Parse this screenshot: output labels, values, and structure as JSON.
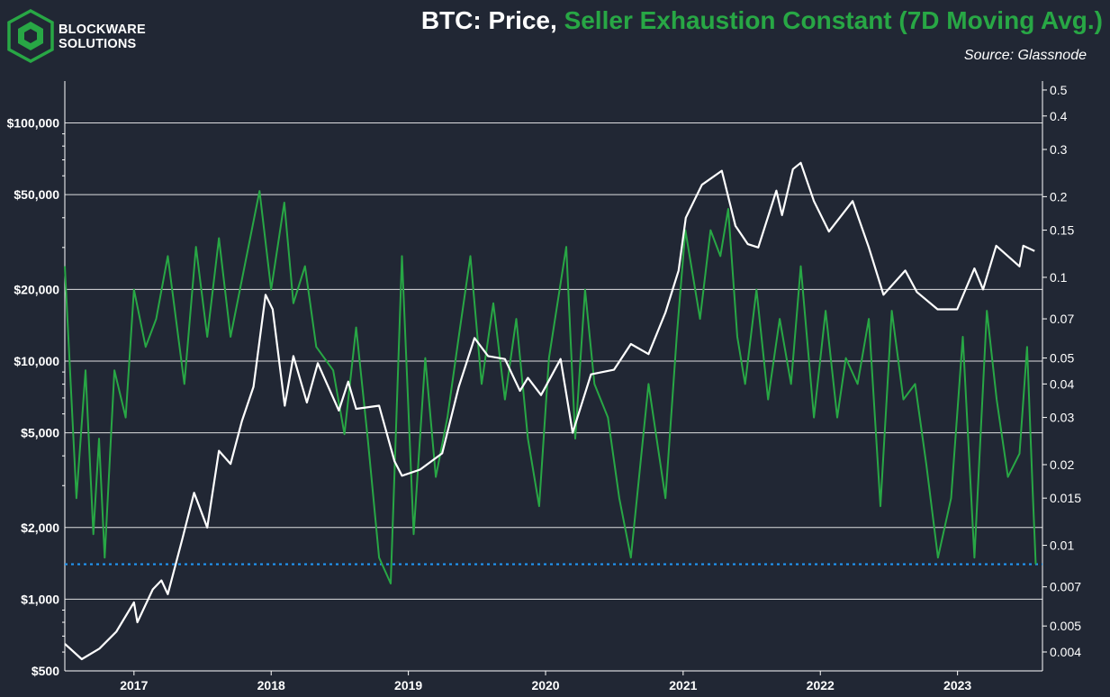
{
  "brand": {
    "line1": "BLOCKWARE",
    "line2": "SOLUTIONS"
  },
  "header": {
    "title_prefix": "BTC: Price, ",
    "title_series": "Seller Exhaustion Constant (7D Moving Avg.)",
    "source": "Source: Glassnode"
  },
  "colors": {
    "background": "#212734",
    "price": "#ffffff",
    "sec": "#28a745",
    "threshold": "#2196f3",
    "grid": "#ffffff"
  },
  "chart_data": {
    "type": "line",
    "x_ticks": [
      "2017",
      "2018",
      "2019",
      "2020",
      "2021",
      "2022",
      "2023"
    ],
    "xlim": [
      "2016-07-01",
      "2023-08-15"
    ],
    "y_left": {
      "scale": "log",
      "range": [
        500,
        150000
      ],
      "ticks": [
        {
          "v": 500,
          "label": "$500"
        },
        {
          "v": 1000,
          "label": "$1,000"
        },
        {
          "v": 2000,
          "label": "$2,000"
        },
        {
          "v": 5000,
          "label": "$5,000"
        },
        {
          "v": 10000,
          "label": "$10,000"
        },
        {
          "v": 20000,
          "label": "$20,000"
        },
        {
          "v": 50000,
          "label": "$50,000"
        },
        {
          "v": 100000,
          "label": "$100,000"
        }
      ]
    },
    "y_right": {
      "scale": "log",
      "range": [
        0.0034,
        0.54
      ],
      "ticks": [
        {
          "v": 0.5,
          "label": "0.5"
        },
        {
          "v": 0.4,
          "label": "0.4"
        },
        {
          "v": 0.3,
          "label": "0.3"
        },
        {
          "v": 0.2,
          "label": "0.2"
        },
        {
          "v": 0.15,
          "label": "0.15"
        },
        {
          "v": 0.1,
          "label": "0.1"
        },
        {
          "v": 0.07,
          "label": "0.07"
        },
        {
          "v": 0.05,
          "label": "0.05"
        },
        {
          "v": 0.04,
          "label": "0.04"
        },
        {
          "v": 0.03,
          "label": "0.03"
        },
        {
          "v": 0.02,
          "label": "0.02"
        },
        {
          "v": 0.015,
          "label": "0.015"
        },
        {
          "v": 0.01,
          "label": "0.01"
        },
        {
          "v": 0.007,
          "label": "0.007"
        },
        {
          "v": 0.005,
          "label": "0.005"
        },
        {
          "v": 0.004,
          "label": "0.004"
        }
      ]
    },
    "threshold": 0.0085,
    "series": [
      {
        "axis": "left",
        "points": [
          [
            "2016-07-01",
            650
          ],
          [
            "2016-08-15",
            560
          ],
          [
            "2016-10-01",
            620
          ],
          [
            "2016-11-15",
            730
          ],
          [
            "2017-01-01",
            970
          ],
          [
            "2017-01-10",
            800
          ],
          [
            "2017-02-20",
            1100
          ],
          [
            "2017-03-15",
            1200
          ],
          [
            "2017-04-01",
            1050
          ],
          [
            "2017-05-10",
            1800
          ],
          [
            "2017-06-10",
            2800
          ],
          [
            "2017-07-15",
            2000
          ],
          [
            "2017-08-15",
            4200
          ],
          [
            "2017-09-15",
            3700
          ],
          [
            "2017-10-15",
            5600
          ],
          [
            "2017-11-15",
            7800
          ],
          [
            "2017-12-17",
            19000
          ],
          [
            "2018-01-05",
            16500
          ],
          [
            "2018-02-06",
            6500
          ],
          [
            "2018-03-01",
            10500
          ],
          [
            "2018-04-06",
            6700
          ],
          [
            "2018-05-05",
            9800
          ],
          [
            "2018-06-30",
            6200
          ],
          [
            "2018-07-25",
            8200
          ],
          [
            "2018-08-15",
            6300
          ],
          [
            "2018-10-15",
            6500
          ],
          [
            "2018-11-25",
            3800
          ],
          [
            "2018-12-15",
            3300
          ],
          [
            "2019-02-01",
            3500
          ],
          [
            "2019-04-01",
            4100
          ],
          [
            "2019-05-15",
            7800
          ],
          [
            "2019-06-26",
            12500
          ],
          [
            "2019-08-01",
            10500
          ],
          [
            "2019-09-15",
            10200
          ],
          [
            "2019-10-25",
            7500
          ],
          [
            "2019-11-15",
            8500
          ],
          [
            "2019-12-20",
            7200
          ],
          [
            "2020-02-10",
            10200
          ],
          [
            "2020-03-13",
            5000
          ],
          [
            "2020-05-01",
            8800
          ],
          [
            "2020-07-01",
            9200
          ],
          [
            "2020-08-15",
            11800
          ],
          [
            "2020-10-01",
            10700
          ],
          [
            "2020-11-15",
            16000
          ],
          [
            "2020-12-20",
            24000
          ],
          [
            "2021-01-08",
            40000
          ],
          [
            "2021-02-20",
            55000
          ],
          [
            "2021-04-14",
            63000
          ],
          [
            "2021-05-20",
            37000
          ],
          [
            "2021-06-22",
            31000
          ],
          [
            "2021-07-20",
            30000
          ],
          [
            "2021-09-06",
            52000
          ],
          [
            "2021-09-21",
            41000
          ],
          [
            "2021-10-20",
            64000
          ],
          [
            "2021-11-10",
            68000
          ],
          [
            "2021-12-15",
            47000
          ],
          [
            "2022-01-24",
            35000
          ],
          [
            "2022-03-28",
            47000
          ],
          [
            "2022-05-10",
            30000
          ],
          [
            "2022-06-18",
            19000
          ],
          [
            "2022-08-15",
            24000
          ],
          [
            "2022-09-15",
            19500
          ],
          [
            "2022-11-09",
            16500
          ],
          [
            "2022-12-31",
            16500
          ],
          [
            "2023-02-15",
            24500
          ],
          [
            "2023-03-10",
            20000
          ],
          [
            "2023-04-14",
            30500
          ],
          [
            "2023-06-15",
            25000
          ],
          [
            "2023-06-25",
            30500
          ],
          [
            "2023-07-25",
            29000
          ]
        ]
      },
      {
        "axis": "right",
        "points": [
          [
            "2016-07-01",
            0.11
          ],
          [
            "2016-08-01",
            0.015
          ],
          [
            "2016-08-25",
            0.045
          ],
          [
            "2016-09-15",
            0.011
          ],
          [
            "2016-09-30",
            0.025
          ],
          [
            "2016-10-15",
            0.009
          ],
          [
            "2016-11-10",
            0.045
          ],
          [
            "2016-12-10",
            0.03
          ],
          [
            "2017-01-01",
            0.09
          ],
          [
            "2017-02-01",
            0.055
          ],
          [
            "2017-03-01",
            0.07
          ],
          [
            "2017-04-01",
            0.12
          ],
          [
            "2017-05-15",
            0.04
          ],
          [
            "2017-06-15",
            0.13
          ],
          [
            "2017-07-15",
            0.06
          ],
          [
            "2017-08-15",
            0.14
          ],
          [
            "2017-09-15",
            0.06
          ],
          [
            "2017-12-01",
            0.21
          ],
          [
            "2018-01-01",
            0.09
          ],
          [
            "2018-02-05",
            0.19
          ],
          [
            "2018-03-01",
            0.08
          ],
          [
            "2018-04-01",
            0.11
          ],
          [
            "2018-05-01",
            0.055
          ],
          [
            "2018-06-15",
            0.045
          ],
          [
            "2018-07-15",
            0.026
          ],
          [
            "2018-08-15",
            0.065
          ],
          [
            "2018-09-15",
            0.025
          ],
          [
            "2018-10-15",
            0.009
          ],
          [
            "2018-11-15",
            0.0072
          ],
          [
            "2018-12-15",
            0.12
          ],
          [
            "2019-01-15",
            0.011
          ],
          [
            "2019-02-15",
            0.05
          ],
          [
            "2019-03-15",
            0.018
          ],
          [
            "2019-04-15",
            0.03
          ],
          [
            "2019-05-15",
            0.06
          ],
          [
            "2019-06-15",
            0.12
          ],
          [
            "2019-07-15",
            0.04
          ],
          [
            "2019-08-15",
            0.08
          ],
          [
            "2019-09-15",
            0.035
          ],
          [
            "2019-10-15",
            0.07
          ],
          [
            "2019-11-15",
            0.025
          ],
          [
            "2019-12-15",
            0.014
          ],
          [
            "2020-01-10",
            0.05
          ],
          [
            "2020-02-25",
            0.13
          ],
          [
            "2020-03-20",
            0.025
          ],
          [
            "2020-04-15",
            0.09
          ],
          [
            "2020-05-10",
            0.04
          ],
          [
            "2020-06-15",
            0.03
          ],
          [
            "2020-07-15",
            0.015
          ],
          [
            "2020-08-15",
            0.009
          ],
          [
            "2020-10-01",
            0.04
          ],
          [
            "2020-11-15",
            0.015
          ],
          [
            "2020-12-15",
            0.06
          ],
          [
            "2021-01-07",
            0.15
          ],
          [
            "2021-02-15",
            0.07
          ],
          [
            "2021-03-15",
            0.15
          ],
          [
            "2021-04-10",
            0.12
          ],
          [
            "2021-05-01",
            0.18
          ],
          [
            "2021-05-25",
            0.06
          ],
          [
            "2021-06-15",
            0.04
          ],
          [
            "2021-07-15",
            0.09
          ],
          [
            "2021-08-15",
            0.035
          ],
          [
            "2021-09-15",
            0.07
          ],
          [
            "2021-10-15",
            0.04
          ],
          [
            "2021-11-10",
            0.11
          ],
          [
            "2021-12-15",
            0.03
          ],
          [
            "2022-01-15",
            0.075
          ],
          [
            "2022-02-15",
            0.03
          ],
          [
            "2022-03-10",
            0.05
          ],
          [
            "2022-04-10",
            0.04
          ],
          [
            "2022-05-10",
            0.07
          ],
          [
            "2022-06-10",
            0.014
          ],
          [
            "2022-07-10",
            0.075
          ],
          [
            "2022-08-10",
            0.035
          ],
          [
            "2022-09-10",
            0.04
          ],
          [
            "2022-10-10",
            0.02
          ],
          [
            "2022-11-10",
            0.009
          ],
          [
            "2022-12-15",
            0.015
          ],
          [
            "2023-01-15",
            0.06
          ],
          [
            "2023-02-15",
            0.009
          ],
          [
            "2023-03-20",
            0.075
          ],
          [
            "2023-04-15",
            0.035
          ],
          [
            "2023-05-15",
            0.018
          ],
          [
            "2023-06-15",
            0.022
          ],
          [
            "2023-07-05",
            0.055
          ],
          [
            "2023-07-20",
            0.016
          ],
          [
            "2023-07-28",
            0.0085
          ]
        ]
      }
    ]
  }
}
